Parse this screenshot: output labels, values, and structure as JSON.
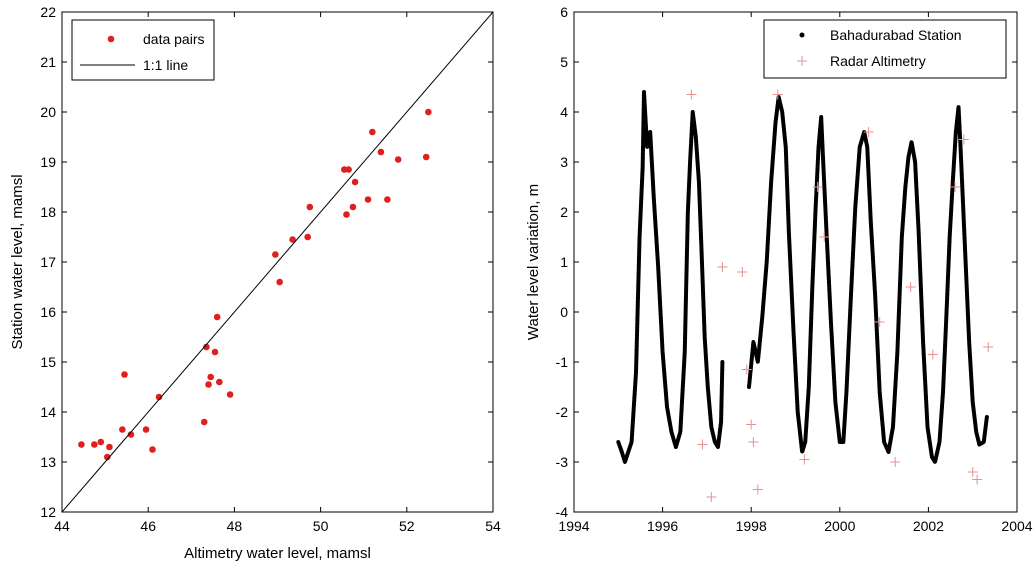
{
  "chart_data": [
    {
      "type": "scatter",
      "xlabel": "Altimetry water level, mamsl",
      "ylabel": "Station water level, mamsl",
      "xlim": [
        44,
        54
      ],
      "ylim": [
        12,
        22
      ],
      "xticks": [
        "44",
        "46",
        "48",
        "50",
        "52",
        "54"
      ],
      "yticks": [
        "12",
        "13",
        "14",
        "15",
        "16",
        "17",
        "18",
        "19",
        "20",
        "21",
        "22"
      ],
      "legend": [
        "data pairs",
        "1:1 line"
      ],
      "legend_position": "top-left",
      "grid": false,
      "series": [
        {
          "name": "data pairs",
          "color": "#e02020",
          "points": [
            [
              44.45,
              13.35
            ],
            [
              44.75,
              13.35
            ],
            [
              44.9,
              13.4
            ],
            [
              45.05,
              13.1
            ],
            [
              45.1,
              13.3
            ],
            [
              45.4,
              13.65
            ],
            [
              45.45,
              14.75
            ],
            [
              45.6,
              13.55
            ],
            [
              45.95,
              13.65
            ],
            [
              46.1,
              13.25
            ],
            [
              46.25,
              14.3
            ],
            [
              47.3,
              13.8
            ],
            [
              47.35,
              15.3
            ],
            [
              47.4,
              14.55
            ],
            [
              47.45,
              14.7
            ],
            [
              47.55,
              15.2
            ],
            [
              47.6,
              15.9
            ],
            [
              47.65,
              14.6
            ],
            [
              47.9,
              14.35
            ],
            [
              48.95,
              17.15
            ],
            [
              49.05,
              16.6
            ],
            [
              49.35,
              17.45
            ],
            [
              49.7,
              17.5
            ],
            [
              49.75,
              18.1
            ],
            [
              50.55,
              18.85
            ],
            [
              50.6,
              17.95
            ],
            [
              50.65,
              18.85
            ],
            [
              50.75,
              18.1
            ],
            [
              50.8,
              18.6
            ],
            [
              51.1,
              18.25
            ],
            [
              51.2,
              19.6
            ],
            [
              51.4,
              19.2
            ],
            [
              51.55,
              18.25
            ],
            [
              51.8,
              19.05
            ],
            [
              52.45,
              19.1
            ],
            [
              52.5,
              20.0
            ]
          ]
        },
        {
          "name": "1:1 line",
          "color": "#000000",
          "line": [
            [
              44,
              12
            ],
            [
              54,
              22
            ]
          ]
        }
      ]
    },
    {
      "type": "scatter",
      "xlabel": "",
      "ylabel": "Water level variation, m",
      "xlim": [
        1994,
        2004
      ],
      "ylim": [
        -4,
        6
      ],
      "xticks": [
        "1994",
        "1996",
        "1998",
        "2000",
        "2002",
        "2004"
      ],
      "yticks": [
        "-4",
        "-3",
        "-2",
        "-1",
        "0",
        "1",
        "2",
        "3",
        "4",
        "5",
        "6"
      ],
      "legend": [
        "Bahadurabad Station",
        "Radar Altimetry"
      ],
      "legend_position": "top-right",
      "grid": false,
      "series": [
        {
          "name": "Bahadurabad Station",
          "color": "#000000",
          "marker": "dot",
          "segments": [
            [
              [
                1995.0,
                -2.6
              ],
              [
                1995.08,
                -2.8
              ],
              [
                1995.15,
                -3.0
              ],
              [
                1995.3,
                -2.6
              ],
              [
                1995.4,
                -1.2
              ],
              [
                1995.48,
                1.5
              ],
              [
                1995.55,
                2.9
              ],
              [
                1995.58,
                4.4
              ],
              [
                1995.65,
                3.3
              ],
              [
                1995.72,
                3.6
              ],
              [
                1995.8,
                2.3
              ],
              [
                1995.9,
                0.9
              ],
              [
                1996.0,
                -0.8
              ],
              [
                1996.1,
                -1.9
              ],
              [
                1996.2,
                -2.4
              ],
              [
                1996.3,
                -2.7
              ],
              [
                1996.4,
                -2.4
              ],
              [
                1996.5,
                -0.8
              ],
              [
                1996.57,
                2.0
              ],
              [
                1996.62,
                3.0
              ],
              [
                1996.68,
                4.0
              ],
              [
                1996.75,
                3.5
              ],
              [
                1996.82,
                2.6
              ],
              [
                1996.88,
                1.2
              ],
              [
                1996.95,
                -0.5
              ],
              [
                1997.02,
                -1.5
              ],
              [
                1997.1,
                -2.3
              ],
              [
                1997.18,
                -2.6
              ],
              [
                1997.25,
                -2.7
              ],
              [
                1997.32,
                -2.2
              ],
              [
                1997.35,
                -1.0
              ]
            ],
            [
              [
                1997.95,
                -1.5
              ],
              [
                1998.05,
                -0.6
              ],
              [
                1998.15,
                -1.0
              ],
              [
                1998.25,
                -0.1
              ],
              [
                1998.35,
                1.0
              ],
              [
                1998.45,
                2.6
              ],
              [
                1998.55,
                3.8
              ],
              [
                1998.62,
                4.3
              ],
              [
                1998.7,
                4.0
              ],
              [
                1998.78,
                3.3
              ],
              [
                1998.85,
                1.6
              ],
              [
                1998.95,
                -0.3
              ],
              [
                1999.05,
                -2.0
              ],
              [
                1999.15,
                -2.8
              ],
              [
                1999.22,
                -2.6
              ],
              [
                1999.3,
                -1.5
              ],
              [
                1999.38,
                0.5
              ],
              [
                1999.45,
                2.0
              ],
              [
                1999.52,
                3.3
              ],
              [
                1999.58,
                3.9
              ],
              [
                1999.62,
                3.1
              ],
              [
                1999.7,
                1.6
              ],
              [
                1999.8,
                -0.2
              ],
              [
                1999.9,
                -1.8
              ],
              [
                2000.0,
                -2.6
              ],
              [
                2000.08,
                -2.6
              ],
              [
                2000.15,
                -1.6
              ],
              [
                2000.25,
                0.3
              ],
              [
                2000.35,
                2.1
              ],
              [
                2000.45,
                3.3
              ],
              [
                2000.55,
                3.6
              ],
              [
                2000.62,
                3.3
              ],
              [
                2000.7,
                1.8
              ],
              [
                2000.8,
                0.3
              ],
              [
                2000.9,
                -1.6
              ],
              [
                2001.0,
                -2.6
              ],
              [
                2001.1,
                -2.8
              ],
              [
                2001.2,
                -2.3
              ],
              [
                2001.3,
                -0.8
              ],
              [
                2001.4,
                1.5
              ],
              [
                2001.48,
                2.5
              ],
              [
                2001.55,
                3.1
              ],
              [
                2001.62,
                3.4
              ],
              [
                2001.7,
                3.0
              ],
              [
                2001.78,
                1.6
              ],
              [
                2001.88,
                -0.6
              ],
              [
                2001.98,
                -2.3
              ],
              [
                2002.08,
                -2.9
              ],
              [
                2002.15,
                -3.0
              ],
              [
                2002.25,
                -2.6
              ],
              [
                2002.33,
                -1.6
              ],
              [
                2002.4,
                -0.2
              ],
              [
                2002.48,
                1.5
              ],
              [
                2002.55,
                2.6
              ],
              [
                2002.62,
                3.6
              ],
              [
                2002.68,
                4.1
              ],
              [
                2002.72,
                3.4
              ],
              [
                2002.78,
                2.2
              ],
              [
                2002.85,
                0.8
              ],
              [
                2002.92,
                -0.6
              ],
              [
                2003.0,
                -1.8
              ],
              [
                2003.08,
                -2.4
              ],
              [
                2003.15,
                -2.65
              ],
              [
                2003.25,
                -2.6
              ],
              [
                2003.32,
                -2.1
              ]
            ]
          ]
        },
        {
          "name": "Radar Altimetry",
          "color": "#e89090",
          "marker": "plus",
          "points": [
            [
              1996.65,
              4.35
            ],
            [
              1996.9,
              -2.65
            ],
            [
              1997.1,
              -3.7
            ],
            [
              1997.35,
              0.9
            ],
            [
              1997.8,
              0.8
            ],
            [
              1997.9,
              -1.15
            ],
            [
              1998.0,
              -2.25
            ],
            [
              1998.05,
              -2.6
            ],
            [
              1998.15,
              -3.55
            ],
            [
              1998.6,
              4.35
            ],
            [
              1999.2,
              -2.95
            ],
            [
              1999.5,
              2.5
            ],
            [
              1999.65,
              1.5
            ],
            [
              2000.65,
              3.6
            ],
            [
              2000.9,
              -0.2
            ],
            [
              2001.25,
              -3.0
            ],
            [
              2001.6,
              0.5
            ],
            [
              2002.1,
              -0.85
            ],
            [
              2002.6,
              2.5
            ],
            [
              2002.8,
              3.45
            ],
            [
              2003.0,
              -3.2
            ],
            [
              2003.1,
              -3.35
            ],
            [
              2003.35,
              -0.7
            ]
          ]
        }
      ]
    }
  ]
}
